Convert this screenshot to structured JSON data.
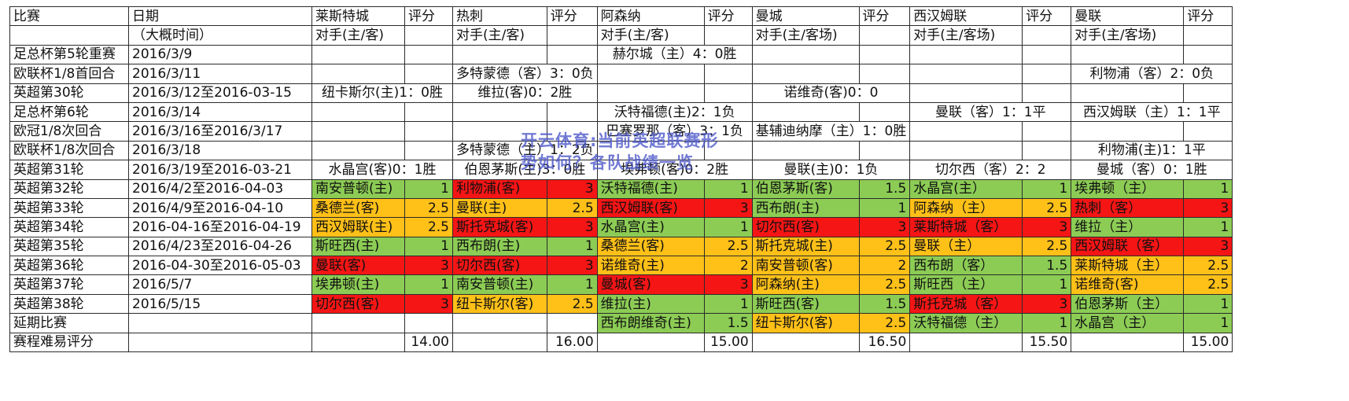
{
  "header": {
    "match": "比赛",
    "date": "日期",
    "date_sub": "（大概时间）",
    "score": "评分",
    "opponent_sub": [
      "对手(主/客)",
      "对手(主/客)",
      "对手(主/客)",
      "对手(主/客场)",
      "对手(主/客场)",
      "对手(主/客场)"
    ]
  },
  "teams": [
    "莱斯特城",
    "热刺",
    "阿森纳",
    "曼城",
    "西汉姆联",
    "曼联"
  ],
  "early_rows": [
    {
      "match": "足总杯第5轮重赛",
      "date": "2016/3/9",
      "cells": [
        {
          "span": [
            4,
            5
          ],
          "text": "赫尔城（主）4：0胜"
        }
      ]
    },
    {
      "match": "欧联杯1/8首回合",
      "date": "2016/3/11",
      "cells": [
        {
          "span": [
            2,
            3
          ],
          "text": "多特蒙德（客）3：0负"
        },
        {
          "span": [
            10,
            11
          ],
          "text": "利物浦（客）2：0负"
        }
      ]
    },
    {
      "match": "英超第30轮",
      "date": "2016/3/12至2016-03-15",
      "cells": [
        {
          "span": [
            0,
            1
          ],
          "text": "纽卡斯尔(主)1：0胜"
        },
        {
          "span": [
            2,
            3
          ],
          "text": "维拉(客)0：2胜"
        },
        {
          "span": [
            6,
            7
          ],
          "text": "诺维奇(客)0：0"
        }
      ]
    },
    {
      "match": "足总杯第6轮",
      "date": "2016/3/14",
      "cells": [
        {
          "span": [
            4,
            5
          ],
          "text": "沃特福德(主)2：1负"
        },
        {
          "span": [
            8,
            9
          ],
          "text": "曼联（客）1：1平"
        },
        {
          "span": [
            10,
            11
          ],
          "text": "西汉姆联（主）1：1平"
        }
      ]
    },
    {
      "match": "欧冠1/8次回合",
      "date": "2016/3/16至2016/3/17",
      "cells": [
        {
          "span": [
            4,
            5
          ],
          "text": "巴塞罗那（客）3：1负"
        },
        {
          "span": [
            6,
            7
          ],
          "text": "基辅迪纳摩（主）1：0胜"
        }
      ]
    },
    {
      "match": "欧联杯1/8次回合",
      "date": "2016/3/18",
      "cells": [
        {
          "span": [
            2,
            3
          ],
          "text": "多特蒙德（主）1：2负"
        },
        {
          "span": [
            10,
            11
          ],
          "text": "利物浦(主)1：1平"
        }
      ]
    },
    {
      "match": "英超第31轮",
      "date": "2016/3/19至2016-03-21",
      "cells": [
        {
          "span": [
            0,
            1
          ],
          "text": "水晶宫(客)0：1胜"
        },
        {
          "span": [
            2,
            3
          ],
          "text": "伯恩茅斯(主)3：0胜"
        },
        {
          "span": [
            4,
            5
          ],
          "text": "埃弗顿(客)0：2胜"
        },
        {
          "span": [
            6,
            7
          ],
          "text": "曼联(主)0：1负"
        },
        {
          "span": [
            8,
            9
          ],
          "text": "切尔西（客）2：2"
        },
        {
          "span": [
            10,
            11
          ],
          "text": "曼城（客）0：1胜"
        }
      ]
    }
  ],
  "league_rows": [
    {
      "match": "英超第32轮",
      "date": "2016/4/2至2016-04-03",
      "cells": [
        [
          "南安普顿(主)",
          "1",
          "g"
        ],
        [
          "利物浦(客)",
          "3",
          "r"
        ],
        [
          "沃特福德(主)",
          "1",
          "g"
        ],
        [
          "伯恩茅斯(客)",
          "1.5",
          "g"
        ],
        [
          "水晶宫(主）",
          "1",
          "g"
        ],
        [
          "埃弗顿（主）",
          "1",
          "g"
        ]
      ]
    },
    {
      "match": "英超第33轮",
      "date": "2016/4/9至2016-04-10",
      "cells": [
        [
          "桑德兰(客)",
          "2.5",
          "o"
        ],
        [
          "曼联(主)",
          "2.5",
          "o"
        ],
        [
          "西汉姆联(客)",
          "3",
          "r"
        ],
        [
          "西布朗(主)",
          "1",
          "g"
        ],
        [
          "阿森纳（主）",
          "2.5",
          "o"
        ],
        [
          "热刺（客）",
          "3",
          "r"
        ]
      ]
    },
    {
      "match": "英超第34轮",
      "date": "2016-04-16至2016-04-19",
      "cells": [
        [
          "西汉姆联(主)",
          "2.5",
          "o"
        ],
        [
          "斯托克城(客)",
          "3",
          "r"
        ],
        [
          "水晶宫(主)",
          "1",
          "g"
        ],
        [
          "切尔西(客)",
          "3",
          "r"
        ],
        [
          "莱斯特城（客）",
          "3",
          "r"
        ],
        [
          "维拉（主）",
          "1",
          "g"
        ]
      ]
    },
    {
      "match": "英超第35轮",
      "date": "2016/4/23至2016-04-26",
      "cells": [
        [
          "斯旺西(主)",
          "1",
          "g"
        ],
        [
          "西布朗(主)",
          "1",
          "g"
        ],
        [
          "桑德兰(客)",
          "2.5",
          "o"
        ],
        [
          "斯托克城(主)",
          "2.5",
          "o"
        ],
        [
          "曼联（主）",
          "2.5",
          "o"
        ],
        [
          "西汉姆联（客）",
          "3",
          "r"
        ]
      ]
    },
    {
      "match": "英超第36轮",
      "date": "2016-04-30至2016-05-03",
      "cells": [
        [
          "曼联(客)",
          "3",
          "r"
        ],
        [
          "切尔西(客)",
          "3",
          "r"
        ],
        [
          "诺维奇(主)",
          "2",
          "o"
        ],
        [
          "南安普顿(客)",
          "2",
          "o"
        ],
        [
          "西布朗（客）",
          "1.5",
          "g"
        ],
        [
          "莱斯特城（主）",
          "2.5",
          "o"
        ]
      ]
    },
    {
      "match": "英超第37轮",
      "date": "2016/5/7",
      "cells": [
        [
          "埃弗顿(主)",
          "1",
          "g"
        ],
        [
          "南安普顿(主)",
          "1",
          "g"
        ],
        [
          "曼城(客)",
          "3",
          "r"
        ],
        [
          "阿森纳(主)",
          "2.5",
          "o"
        ],
        [
          "斯旺西（主）",
          "1",
          "g"
        ],
        [
          "诺维奇(客)",
          "2.5",
          "o"
        ]
      ]
    },
    {
      "match": "英超第38轮",
      "date": "2016/5/15",
      "cells": [
        [
          "切尔西(客)",
          "3",
          "r"
        ],
        [
          "纽卡斯尔(客)",
          "2.5",
          "o"
        ],
        [
          "维拉(主)",
          "1",
          "g"
        ],
        [
          "斯旺西(客)",
          "1.5",
          "g"
        ],
        [
          "斯托克城（客）",
          "3",
          "r"
        ],
        [
          "伯恩茅斯（主）",
          "1",
          "g"
        ]
      ]
    }
  ],
  "postponed": {
    "match": "延期比赛",
    "cells": [
      null,
      null,
      [
        "西布朗维奇(主)",
        "1.5",
        "g"
      ],
      [
        "纽卡斯尔(客)",
        "2.5",
        "o"
      ],
      [
        "沃特福德（主）",
        "1",
        "g"
      ],
      [
        "水晶宫（主）",
        "1",
        "g"
      ]
    ]
  },
  "totals": {
    "match": "赛程难易评分",
    "values": [
      "14.00",
      "16.00",
      "15.00",
      "16.50",
      "15.50",
      "15.00"
    ]
  },
  "watermark": "开云体育:当前英超联赛形势如何？各队战绩一览"
}
